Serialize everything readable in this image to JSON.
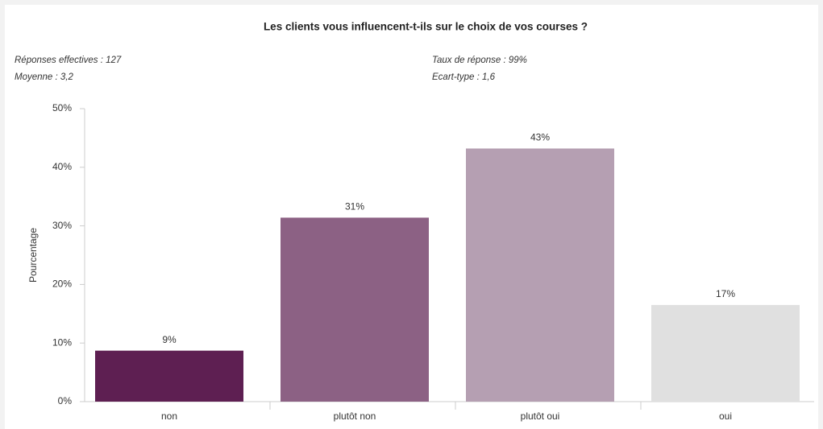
{
  "chart_data": {
    "type": "bar",
    "title": "Les clients vous influencent-t-ils sur le choix de vos courses ?",
    "stats": [
      "Réponses effectives : 127",
      "Moyenne : 3,2",
      "Taux de réponse : 99%",
      "Ecart-type : 1,6"
    ],
    "ylabel": "Pourcentage",
    "categories": [
      "non",
      "plutôt non",
      "plutôt oui",
      "oui"
    ],
    "values": [
      8.7,
      31.4,
      43.2,
      16.5
    ],
    "value_labels": [
      "9%",
      "31%",
      "43%",
      "17%"
    ],
    "colors": [
      "#5e1f52",
      "#8c6184",
      "#b59fb2",
      "#e0e0e0"
    ],
    "ylim": [
      0,
      50
    ],
    "yticks": [
      {
        "value": 0,
        "label": "0%"
      },
      {
        "value": 10,
        "label": "10%"
      },
      {
        "value": 20,
        "label": "20%"
      },
      {
        "value": 30,
        "label": "30%"
      },
      {
        "value": 40,
        "label": "40%"
      },
      {
        "value": 50,
        "label": "50%"
      }
    ],
    "grid": false
  }
}
